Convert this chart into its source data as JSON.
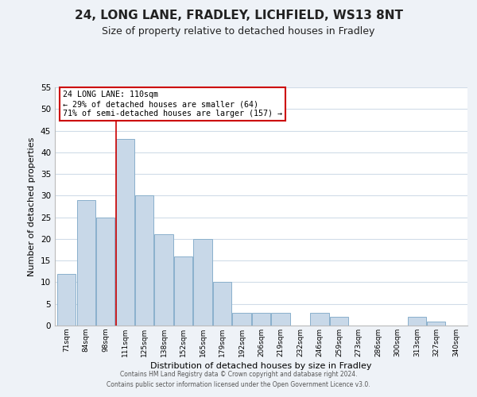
{
  "title": "24, LONG LANE, FRADLEY, LICHFIELD, WS13 8NT",
  "subtitle": "Size of property relative to detached houses in Fradley",
  "xlabel": "Distribution of detached houses by size in Fradley",
  "ylabel": "Number of detached properties",
  "footer_line1": "Contains HM Land Registry data © Crown copyright and database right 2024.",
  "footer_line2": "Contains public sector information licensed under the Open Government Licence v3.0.",
  "bin_labels": [
    "71sqm",
    "84sqm",
    "98sqm",
    "111sqm",
    "125sqm",
    "138sqm",
    "152sqm",
    "165sqm",
    "179sqm",
    "192sqm",
    "206sqm",
    "219sqm",
    "232sqm",
    "246sqm",
    "259sqm",
    "273sqm",
    "286sqm",
    "300sqm",
    "313sqm",
    "327sqm",
    "340sqm"
  ],
  "bar_heights": [
    12,
    29,
    25,
    43,
    30,
    21,
    16,
    20,
    10,
    3,
    3,
    3,
    0,
    3,
    2,
    0,
    0,
    0,
    2,
    1,
    0
  ],
  "bar_color": "#c8d8e8",
  "bar_edge_color": "#8ab0cc",
  "highlight_bar_index": 3,
  "highlight_line_color": "#cc0000",
  "annotation_line1": "24 LONG LANE: 110sqm",
  "annotation_line2": "← 29% of detached houses are smaller (64)",
  "annotation_line3": "71% of semi-detached houses are larger (157) →",
  "annotation_box_color": "#ffffff",
  "annotation_box_edge": "#cc0000",
  "ylim": [
    0,
    55
  ],
  "yticks": [
    0,
    5,
    10,
    15,
    20,
    25,
    30,
    35,
    40,
    45,
    50,
    55
  ],
  "background_color": "#eef2f7",
  "plot_background": "#ffffff",
  "grid_color": "#d0dce8",
  "title_fontsize": 11,
  "subtitle_fontsize": 9
}
